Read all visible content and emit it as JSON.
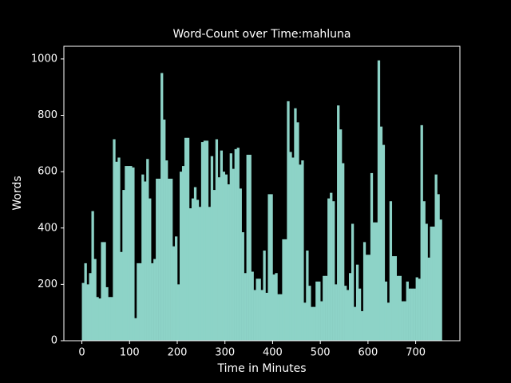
{
  "chart_data": {
    "type": "bar",
    "title": "Word-Count over Time:mahluna",
    "x_label": "Time in Minutes",
    "y_label": "Words",
    "color": "#8dd3c7",
    "bar_width": 5,
    "x": [
      0,
      5,
      10,
      15,
      20,
      25,
      30,
      35,
      40,
      45,
      50,
      55,
      60,
      65,
      70,
      75,
      80,
      85,
      90,
      95,
      100,
      105,
      110,
      115,
      120,
      125,
      130,
      135,
      140,
      145,
      150,
      155,
      160,
      165,
      170,
      175,
      180,
      185,
      190,
      195,
      200,
      205,
      210,
      215,
      220,
      225,
      230,
      235,
      240,
      245,
      250,
      255,
      260,
      265,
      270,
      275,
      280,
      285,
      290,
      295,
      300,
      305,
      310,
      315,
      320,
      325,
      330,
      335,
      340,
      345,
      350,
      355,
      360,
      365,
      370,
      375,
      380,
      385,
      390,
      395,
      400,
      405,
      410,
      415,
      420,
      425,
      430,
      435,
      440,
      445,
      450,
      455,
      460,
      465,
      470,
      475,
      480,
      485,
      490,
      495,
      500,
      505,
      510,
      515,
      520,
      525,
      530,
      535,
      540,
      545,
      550,
      555,
      560,
      565,
      570,
      575,
      580,
      585,
      590,
      595,
      600,
      605,
      610,
      615,
      620,
      625,
      630,
      635,
      640,
      645,
      650,
      655,
      660,
      665,
      670,
      675,
      680,
      685,
      690,
      695,
      700,
      705,
      710,
      715,
      720,
      725,
      730,
      735,
      740,
      745,
      750
    ],
    "values": [
      205,
      275,
      200,
      240,
      460,
      290,
      155,
      150,
      350,
      350,
      190,
      155,
      155,
      715,
      635,
      650,
      315,
      535,
      620,
      620,
      620,
      615,
      80,
      275,
      275,
      590,
      565,
      645,
      505,
      275,
      290,
      575,
      575,
      950,
      785,
      640,
      575,
      575,
      335,
      370,
      200,
      600,
      620,
      720,
      720,
      470,
      505,
      545,
      500,
      475,
      705,
      710,
      710,
      475,
      655,
      535,
      715,
      580,
      675,
      600,
      590,
      555,
      665,
      610,
      680,
      685,
      540,
      385,
      240,
      660,
      660,
      245,
      180,
      220,
      220,
      180,
      320,
      170,
      520,
      520,
      235,
      240,
      165,
      165,
      360,
      360,
      850,
      670,
      650,
      825,
      775,
      625,
      640,
      135,
      320,
      195,
      120,
      120,
      210,
      210,
      140,
      230,
      230,
      505,
      525,
      495,
      200,
      835,
      750,
      630,
      195,
      180,
      240,
      415,
      120,
      270,
      185,
      105,
      350,
      305,
      305,
      595,
      420,
      420,
      995,
      760,
      695,
      210,
      135,
      495,
      300,
      300,
      230,
      230,
      140,
      140,
      210,
      185,
      185,
      185,
      225,
      220,
      765,
      495,
      415,
      295,
      405,
      405,
      590,
      520,
      430
    ],
    "xlim": [
      -37.75,
      792.75
    ],
    "xticks": [
      0,
      100,
      200,
      300,
      400,
      500,
      600,
      700
    ],
    "ylim": [
      0,
      1045
    ],
    "yticks": [
      0,
      200,
      400,
      600,
      800,
      1000
    ]
  }
}
